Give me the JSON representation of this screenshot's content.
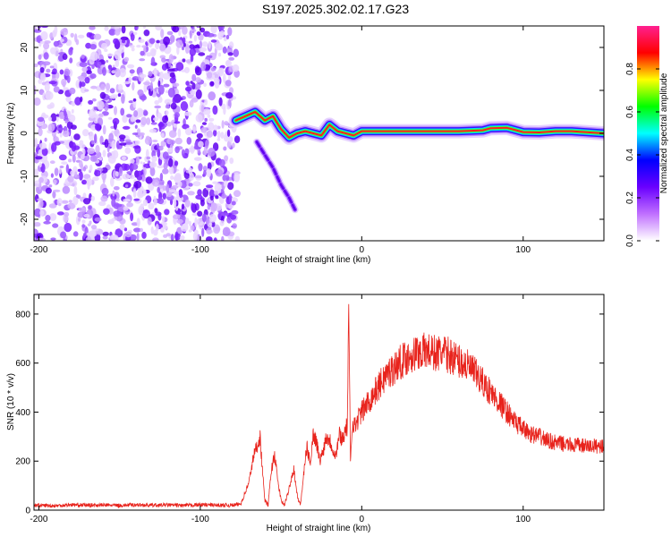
{
  "title": "S197.2025.302.02.17.G23",
  "chart_data": [
    {
      "type": "heatmap",
      "name": "spectrogram",
      "xlabel": "Height of straight line (km)",
      "ylabel": "Frequency (Hz)",
      "xlim": [
        -203,
        150
      ],
      "ylim": [
        -25,
        25
      ],
      "xticks": [
        -200,
        -100,
        0,
        100
      ],
      "xtick_labels": [
        "-200",
        "-100",
        "0",
        "100"
      ],
      "yticks": [
        -20,
        -10,
        0,
        10,
        20
      ],
      "ytick_labels": [
        "-20",
        "-10",
        "0",
        "10",
        "20"
      ],
      "noise_region_x": [
        -203,
        -77
      ],
      "signal_track": [
        {
          "x": -78,
          "f": 3
        },
        {
          "x": -72,
          "f": 4
        },
        {
          "x": -66,
          "f": 5
        },
        {
          "x": -60,
          "f": 3
        },
        {
          "x": -55,
          "f": 4
        },
        {
          "x": -50,
          "f": 1
        },
        {
          "x": -45,
          "f": -1
        },
        {
          "x": -40,
          "f": 0
        },
        {
          "x": -35,
          "f": 0.5
        },
        {
          "x": -30,
          "f": 0
        },
        {
          "x": -25,
          "f": -0.5
        },
        {
          "x": -20,
          "f": 2
        },
        {
          "x": -15,
          "f": 0.5
        },
        {
          "x": -10,
          "f": 0
        },
        {
          "x": -5,
          "f": -0.5
        },
        {
          "x": 0,
          "f": 0.5
        },
        {
          "x": 10,
          "f": 0.5
        },
        {
          "x": 20,
          "f": 0.5
        },
        {
          "x": 40,
          "f": 0.5
        },
        {
          "x": 60,
          "f": 0.5
        },
        {
          "x": 75,
          "f": 0.7
        },
        {
          "x": 80,
          "f": 1.2
        },
        {
          "x": 90,
          "f": 1.3
        },
        {
          "x": 100,
          "f": 0.3
        },
        {
          "x": 110,
          "f": 0.2
        },
        {
          "x": 120,
          "f": 0.5
        },
        {
          "x": 130,
          "f": 0.5
        },
        {
          "x": 150,
          "f": 0
        }
      ],
      "branch_track": [
        {
          "x": -65,
          "f": -2
        },
        {
          "x": -60,
          "f": -5
        },
        {
          "x": -55,
          "f": -8
        },
        {
          "x": -50,
          "f": -12
        },
        {
          "x": -45,
          "f": -15
        },
        {
          "x": -41,
          "f": -18
        }
      ],
      "colorbar": {
        "label": "Normalized spectral amplitude",
        "range": [
          0,
          1
        ],
        "ticks": [
          0.0,
          0.2,
          0.4,
          0.6,
          0.8
        ],
        "tick_labels": [
          "0.0",
          "0.2",
          "0.4",
          "0.6",
          "0.8"
        ],
        "colors": [
          "#ffffff",
          "#c070ff",
          "#6a00ff",
          "#0000ff",
          "#00ffff",
          "#00ff00",
          "#ffff00",
          "#ff0000",
          "#ff2090"
        ]
      }
    },
    {
      "type": "line",
      "name": "snr",
      "xlabel": "Height of straight line (km)",
      "ylabel": "SNR (10 * v/v)",
      "xlim": [
        -203,
        150
      ],
      "ylim": [
        0,
        880
      ],
      "xticks": [
        -200,
        -100,
        0,
        100
      ],
      "xtick_labels": [
        "-200",
        "-100",
        "0",
        "100"
      ],
      "yticks": [
        0,
        200,
        400,
        600,
        800
      ],
      "ytick_labels": [
        "0",
        "200",
        "400",
        "600",
        "800"
      ],
      "color": "#e8231c",
      "series": [
        {
          "name": "SNR",
          "x": [
            -203,
            -190,
            -180,
            -170,
            -160,
            -150,
            -140,
            -130,
            -120,
            -110,
            -100,
            -90,
            -80,
            -75,
            -70,
            -67,
            -65,
            -63,
            -61,
            -60,
            -58,
            -56,
            -54,
            -52,
            -50,
            -48,
            -46,
            -44,
            -42,
            -40,
            -38,
            -36,
            -34,
            -32,
            -30,
            -28,
            -26,
            -24,
            -22,
            -20,
            -18,
            -16,
            -14,
            -12,
            -10,
            -9,
            -8,
            -7,
            -6,
            -5,
            -4,
            -2,
            0,
            5,
            10,
            15,
            20,
            25,
            30,
            35,
            40,
            45,
            50,
            55,
            60,
            65,
            70,
            75,
            80,
            85,
            90,
            95,
            100,
            105,
            110,
            115,
            120,
            125,
            130,
            135,
            140,
            145,
            150
          ],
          "y": [
            20,
            18,
            22,
            20,
            21,
            19,
            22,
            20,
            21,
            19,
            22,
            20,
            20,
            25,
            110,
            220,
            260,
            300,
            120,
            40,
            20,
            160,
            230,
            120,
            40,
            20,
            60,
            120,
            170,
            60,
            20,
            140,
            260,
            190,
            310,
            280,
            200,
            240,
            300,
            290,
            250,
            220,
            310,
            290,
            330,
            340,
            800,
            200,
            340,
            360,
            340,
            380,
            400,
            450,
            500,
            550,
            580,
            610,
            630,
            645,
            650,
            640,
            640,
            630,
            610,
            590,
            560,
            520,
            480,
            440,
            400,
            360,
            330,
            310,
            300,
            285,
            275,
            270,
            265,
            265,
            260,
            262,
            262
          ]
        }
      ]
    }
  ]
}
